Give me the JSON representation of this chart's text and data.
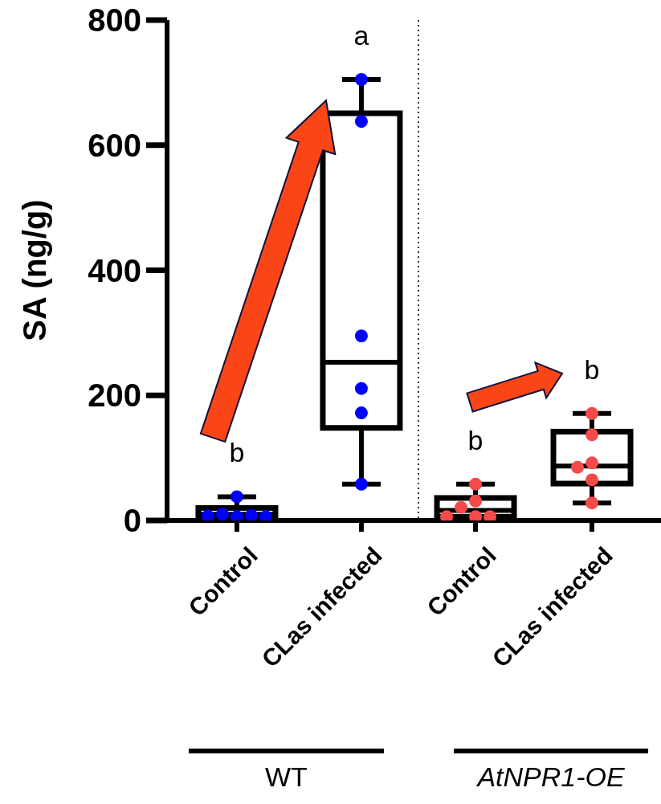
{
  "chart_data": [
    {
      "type": "box",
      "ylabel": "SA (ng/g)",
      "categories": [
        "Control",
        "CLas infected"
      ],
      "ylim": [
        0,
        800
      ],
      "yticks": [
        0,
        200,
        400,
        600,
        800
      ],
      "boxes": [
        {
          "low": 6,
          "q1": 8,
          "median": 10,
          "q3": 20,
          "high": 38
        },
        {
          "low": 58,
          "q1": 148,
          "median": 253,
          "q3": 651,
          "high": 705
        }
      ],
      "series": [
        {
          "type": "scatter",
          "color": "#0000ff",
          "x": [
            "Control",
            "Control",
            "Control",
            "Control",
            "Control",
            "Control",
            "CLas infected",
            "CLas infected",
            "CLas infected",
            "CLas infected",
            "CLas infected",
            "CLas infected"
          ],
          "values": [
            6,
            10,
            8,
            7,
            6,
            38,
            705,
            638,
            295,
            211,
            172,
            58
          ]
        }
      ],
      "annotations": [
        "b",
        "a",
        "WT"
      ]
    },
    {
      "type": "box",
      "categories": [
        "Control",
        "CLas infected"
      ],
      "ylim": [
        0,
        800
      ],
      "yticks": [
        0,
        200,
        400,
        600,
        800
      ],
      "tick_labels": "x",
      "boxes": [
        {
          "low": 6,
          "q1": 6,
          "median": 16,
          "q3": 36,
          "high": 58
        },
        {
          "low": 28,
          "q1": 59,
          "median": 87,
          "q3": 142,
          "high": 171
        }
      ],
      "series": [
        {
          "type": "scatter",
          "color": "#f44a4a",
          "x": [
            "Control",
            "Control",
            "Control",
            "Control",
            "Control",
            "Control",
            "CLas infected",
            "CLas infected",
            "CLas infected",
            "CLas infected",
            "CLas infected",
            "CLas infected"
          ],
          "values": [
            58,
            31,
            21,
            6,
            6,
            6,
            171,
            137,
            92,
            85,
            65,
            28
          ]
        }
      ],
      "annotations": [
        "b",
        "b",
        "AtNPR1-OE"
      ]
    }
  ]
}
